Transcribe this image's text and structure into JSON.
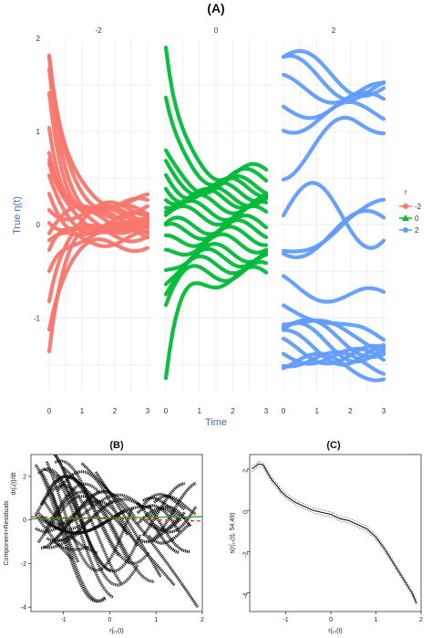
{
  "title_a": "(A)",
  "title_b": "(B)",
  "title_c": "(C)",
  "colors": {
    "neg2": "#f8766d",
    "zero": "#00ba38",
    "pos2": "#619cff",
    "axis_label": "#4a6fa5"
  },
  "chart_data": [
    {
      "type": "line",
      "panel": "A",
      "facets": [
        "-2",
        "0",
        "2"
      ],
      "xlabel": "Time",
      "ylabel": "True η(t)",
      "xlim": [
        0,
        3
      ],
      "ylim": [
        -1.8,
        2.0
      ],
      "x_ticks": [
        "0",
        "1",
        "2",
        "3"
      ],
      "y_ticks": [
        "-1",
        "0",
        "1",
        "2"
      ],
      "legend": {
        "title": "r",
        "placement": "right",
        "entries": [
          "-2",
          "0",
          "2"
        ]
      },
      "grid": true,
      "series": [
        {
          "name": "-2",
          "facet": "-2",
          "start_values": [
            1.8,
            1.75,
            1.6,
            1.4,
            1.1,
            0.85,
            0.72,
            0.6,
            0.45,
            0.3,
            0.2,
            0.1,
            -0.05,
            -0.2,
            -0.35,
            -0.55,
            -0.8,
            -1.05,
            -1.3
          ],
          "end_values": [
            0.25,
            0.2,
            0.12,
            0.08,
            0.05,
            0.02,
            0.0,
            -0.02,
            -0.05,
            -0.08,
            0.1,
            -0.1,
            0.15,
            -0.15,
            0.05,
            -0.05,
            0.18,
            -0.2,
            0.0
          ]
        },
        {
          "name": "0",
          "facet": "0",
          "start_values": [
            1.9,
            1.3,
            0.7,
            0.6,
            0.5,
            0.42,
            0.35,
            0.28,
            0.2,
            0.1,
            -0.05,
            -0.1,
            -0.2,
            -0.3,
            -0.45,
            -0.55,
            -0.65,
            -0.8,
            -1.65
          ],
          "end_values": [
            0.55,
            0.5,
            0.42,
            0.4,
            0.35,
            0.3,
            0.28,
            0.22,
            0.15,
            0.1,
            0.0,
            -0.05,
            -0.12,
            -0.2,
            -0.3,
            -0.35,
            -0.42,
            -0.5,
            -0.55
          ]
        },
        {
          "name": "2",
          "facet": "2",
          "start_values": [
            1.8,
            1.7,
            1.5,
            1.25,
            1.1,
            0.6,
            0.1,
            -0.2,
            -0.4,
            -0.6,
            -0.8,
            -0.95,
            -1.05,
            -1.15,
            -1.25,
            -1.3,
            -1.35,
            -1.4,
            -1.45
          ],
          "end_values": [
            1.5,
            1.45,
            1.4,
            1.3,
            1.2,
            1.1,
            1.0,
            0.9,
            0.15,
            -0.8,
            -1.2,
            -1.25,
            -1.3,
            -1.35,
            -1.4,
            -1.42,
            -1.45,
            -1.5,
            -1.55
          ]
        }
      ]
    },
    {
      "type": "scatter",
      "panel": "B",
      "xlabel": "η̂₁ₛ(t)",
      "ylabel": "Component+Residuals",
      "ylabel2": "dη̂ₛ(t)/dt",
      "xlim": [
        -1.7,
        2.0
      ],
      "ylim": [
        -4.2,
        3.0
      ],
      "x_ticks": [
        "-1",
        "0",
        "1",
        "2"
      ],
      "y_ticks": [
        "-4",
        "-2",
        "0",
        "2"
      ],
      "lines": [
        {
          "color": "#2ca02c",
          "label": ""
        },
        {
          "color": "#d62728",
          "dashed": true,
          "label": ""
        }
      ]
    },
    {
      "type": "line",
      "panel": "C",
      "xlabel": "η̂₁ₛ(t)",
      "ylabel": "s(η̂₁ₛ(t), 54.49)",
      "xlim": [
        -1.8,
        2.0
      ],
      "ylim": [
        -4.9,
        2.7
      ],
      "x_ticks": [
        "-1",
        "0",
        "1",
        "2"
      ],
      "y_ticks": [
        "-4",
        "-2",
        "0",
        "2"
      ],
      "x": [
        -1.75,
        -1.6,
        -1.5,
        -1.4,
        -1.3,
        -1.2,
        -1.1,
        -1.0,
        -0.8,
        -0.6,
        -0.4,
        -0.2,
        0.0,
        0.2,
        0.4,
        0.6,
        0.8,
        1.0,
        1.2,
        1.4,
        1.6,
        1.8,
        1.9
      ],
      "y": [
        2.0,
        2.25,
        2.2,
        1.8,
        1.45,
        1.2,
        0.9,
        0.7,
        0.4,
        0.2,
        0.0,
        -0.1,
        -0.2,
        -0.4,
        -0.5,
        -0.7,
        -0.9,
        -1.3,
        -1.9,
        -2.6,
        -3.3,
        -4.0,
        -4.5
      ]
    }
  ]
}
